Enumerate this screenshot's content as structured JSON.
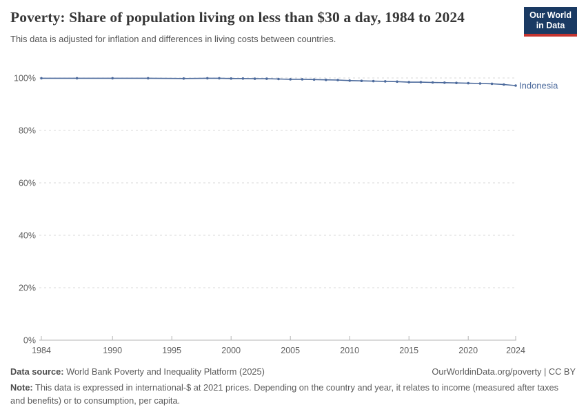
{
  "header": {
    "title": "Poverty: Share of population living on less than $30 a day, 1984 to 2024",
    "subtitle": "This data is adjusted for inflation and differences in living costs between countries.",
    "logo": {
      "line1": "Our World",
      "line2": "in Data"
    }
  },
  "chart_data": {
    "type": "line",
    "title": "Poverty: Share of population living on less than $30 a day, 1984 to 2024",
    "subtitle": "This data is adjusted for inflation and differences in living costs between countries.",
    "xlabel": "",
    "ylabel": "",
    "xlim": [
      1984,
      2024
    ],
    "ylim": [
      0,
      100
    ],
    "grid": "horizontal-dashed",
    "legend_position": "line-end-label",
    "x_ticks": [
      1984,
      1990,
      1995,
      2000,
      2005,
      2010,
      2015,
      2020,
      2024
    ],
    "y_ticks": [
      {
        "value": 0,
        "label": "0%"
      },
      {
        "value": 20,
        "label": "20%"
      },
      {
        "value": 40,
        "label": "40%"
      },
      {
        "value": 60,
        "label": "60%"
      },
      {
        "value": 80,
        "label": "80%"
      },
      {
        "value": 100,
        "label": "100%"
      }
    ],
    "series": [
      {
        "name": "Indonesia",
        "color": "#4c6a9c",
        "x": [
          1984,
          1987,
          1990,
          1993,
          1996,
          1998,
          1999,
          2000,
          2001,
          2002,
          2003,
          2004,
          2005,
          2006,
          2007,
          2008,
          2009,
          2010,
          2011,
          2012,
          2013,
          2014,
          2015,
          2016,
          2017,
          2018,
          2019,
          2020,
          2021,
          2022,
          2023,
          2024
        ],
        "values": [
          99.9,
          99.9,
          99.9,
          99.9,
          99.8,
          99.9,
          99.9,
          99.8,
          99.8,
          99.7,
          99.7,
          99.6,
          99.5,
          99.5,
          99.4,
          99.3,
          99.2,
          99.0,
          98.9,
          98.8,
          98.7,
          98.6,
          98.4,
          98.4,
          98.3,
          98.2,
          98.1,
          98.0,
          97.9,
          97.8,
          97.5,
          97.1
        ]
      }
    ],
    "colors": {
      "grid": "#d9d9d9",
      "axis": "#b4b4b4",
      "tick_label": "#5e5e5e"
    }
  },
  "footer": {
    "source_label": "Data source:",
    "source_text": "World Bank Poverty and Inequality Platform (2025)",
    "credit": "OurWorldinData.org/poverty | CC BY",
    "note_label": "Note:",
    "note_text": "This data is expressed in international-$ at 2021 prices. Depending on the country and year, it relates to income (measured after taxes and benefits) or to consumption, per capita."
  },
  "colors": {
    "accent": "#4c6a9c",
    "logo_bg": "#1a3a63",
    "logo_red": "#c5342f"
  }
}
